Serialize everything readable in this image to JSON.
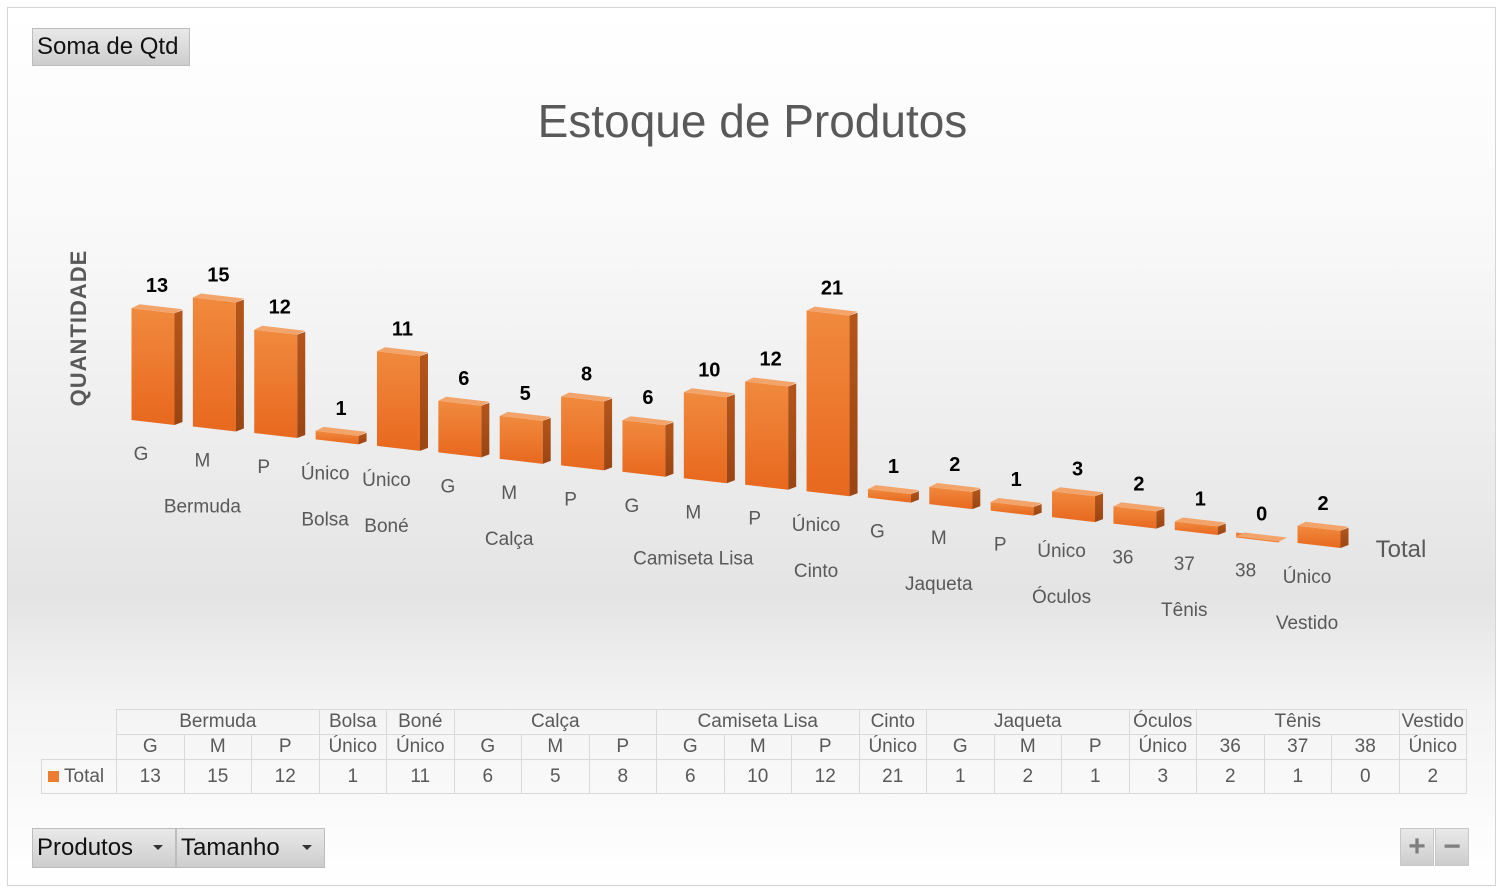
{
  "pivot": {
    "value_field_label": "Soma de Qtd",
    "row_fields": [
      {
        "label": "Produtos"
      },
      {
        "label": "Tamanho"
      }
    ],
    "zoom_in_label": "+",
    "zoom_out_label": "−"
  },
  "chart_data": {
    "type": "bar",
    "title": "Estoque de Produtos",
    "ylabel": "QUANTIDADE",
    "xlabel": "",
    "series": [
      {
        "name": "Total",
        "color": "#ed7d31"
      }
    ],
    "legend": "bottom-left (data table)",
    "depth_axis_label": "Total",
    "groups": [
      {
        "name": "Bermuda",
        "sizes": [
          "G",
          "M",
          "P"
        ],
        "values": [
          13,
          15,
          12
        ]
      },
      {
        "name": "Bolsa",
        "sizes": [
          "Único"
        ],
        "values": [
          1
        ]
      },
      {
        "name": "Boné",
        "sizes": [
          "Único"
        ],
        "values": [
          11
        ]
      },
      {
        "name": "Calça",
        "sizes": [
          "G",
          "M",
          "P"
        ],
        "values": [
          6,
          5,
          8
        ]
      },
      {
        "name": "Camiseta Lisa",
        "sizes": [
          "G",
          "M",
          "P"
        ],
        "values": [
          6,
          10,
          12
        ]
      },
      {
        "name": "Cinto",
        "sizes": [
          "Único"
        ],
        "values": [
          21
        ]
      },
      {
        "name": "Jaqueta",
        "sizes": [
          "G",
          "M",
          "P"
        ],
        "values": [
          1,
          2,
          1
        ]
      },
      {
        "name": "Óculos",
        "sizes": [
          "Único"
        ],
        "values": [
          3
        ]
      },
      {
        "name": "Tênis",
        "sizes": [
          "36",
          "37",
          "38"
        ],
        "values": [
          2,
          1,
          0
        ]
      },
      {
        "name": "Vestido",
        "sizes": [
          "Único"
        ],
        "values": [
          2
        ]
      }
    ],
    "data_table": true,
    "style": "3D column"
  }
}
